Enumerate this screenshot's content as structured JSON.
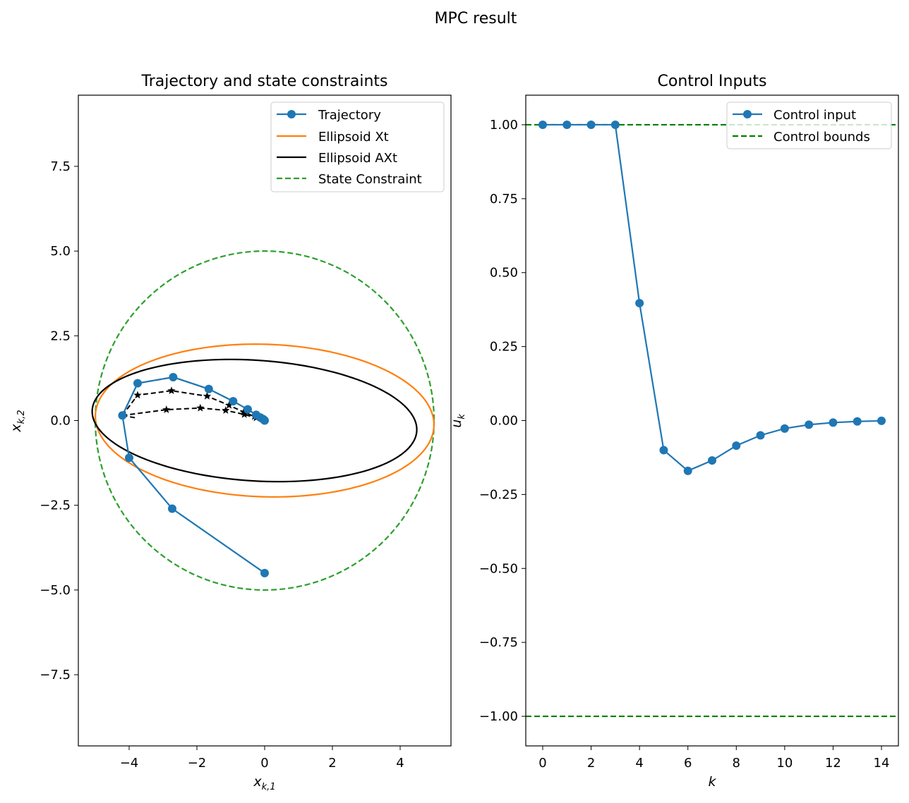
{
  "figure": {
    "suptitle": "MPC result"
  },
  "chart_data": [
    {
      "type": "line",
      "title": "Trajectory and state constraints",
      "xlabel": "x",
      "xlabel_sub": "k,1",
      "ylabel": "x",
      "ylabel_sub": "k,2",
      "xlim": [
        -5.5,
        5.5
      ],
      "ylim": [
        -9.6,
        9.6
      ],
      "xticks": [
        -4,
        -2,
        0,
        2,
        4
      ],
      "xtick_labels": [
        "−4",
        "−2",
        "0",
        "2",
        "4"
      ],
      "yticks": [
        -7.5,
        -5.0,
        -2.5,
        0.0,
        2.5,
        5.0,
        7.5
      ],
      "ytick_labels": [
        "−7.5",
        "−5.0",
        "−2.5",
        "0.0",
        "2.5",
        "5.0",
        "7.5"
      ],
      "legend_position": "top-right",
      "series": [
        {
          "name": "Trajectory",
          "color": "#1f77b4",
          "style": "solid-marker",
          "x": [
            0.0,
            -2.73,
            -4.0,
            -4.2,
            -3.75,
            -2.7,
            -1.65,
            -0.93,
            -0.5,
            -0.25,
            -0.13,
            -0.06,
            -0.03,
            -0.01,
            0.0
          ],
          "y": [
            -4.5,
            -2.6,
            -1.1,
            0.15,
            1.1,
            1.28,
            0.93,
            0.57,
            0.33,
            0.17,
            0.09,
            0.05,
            0.03,
            0.01,
            0.0
          ]
        },
        {
          "name": "Ellipsoid Xt",
          "color": "#ff7f0e",
          "style": "ellipse",
          "center": [
            0.0,
            0.0
          ],
          "semi_axes": [
            5.0,
            2.25
          ],
          "rotation_deg": -1.8
        },
        {
          "name": "Ellipsoid AXt",
          "color": "#000000",
          "style": "ellipse",
          "center": [
            -0.3,
            0.0
          ],
          "semi_axes": [
            4.8,
            1.78
          ],
          "rotation_deg": -3.7
        },
        {
          "name": "State Constraint",
          "color": "#2ca02c",
          "style": "dashed-circle",
          "center": [
            0.0,
            0.0
          ],
          "radius": 5.0
        }
      ],
      "predictions": {
        "color": "#000000",
        "style": "dashed-star",
        "paths": [
          {
            "x": [
              -4.2,
              -3.75,
              -2.7,
              -1.65,
              -0.93,
              -0.5,
              -0.25,
              0.0
            ],
            "y": [
              0.15,
              1.1,
              1.28,
              0.93,
              0.57,
              0.33,
              0.17,
              0.0
            ]
          },
          {
            "x": [
              -4.2,
              -3.75,
              -2.75,
              -1.7,
              -1.05,
              -0.62,
              -0.3,
              0.0
            ],
            "y": [
              0.15,
              0.75,
              0.88,
              0.72,
              0.45,
              0.25,
              0.12,
              0.0
            ]
          },
          {
            "x": [
              -4.2,
              -2.9,
              -1.9,
              -1.15,
              -0.6,
              -0.25,
              0.0
            ],
            "y": [
              0.15,
              0.32,
              0.37,
              0.3,
              0.18,
              0.08,
              0.0
            ]
          },
          {
            "x": [
              -4.2,
              -3.75
            ],
            "y": [
              0.15,
              0.07
            ]
          }
        ]
      }
    },
    {
      "type": "line",
      "title": "Control Inputs",
      "xlabel": "k",
      "ylabel": "u",
      "ylabel_sub": "k",
      "xlim": [
        -0.7,
        14.7
      ],
      "ylim": [
        -1.1,
        1.1
      ],
      "xticks": [
        0,
        2,
        4,
        6,
        8,
        10,
        12,
        14
      ],
      "xtick_labels": [
        "0",
        "2",
        "4",
        "6",
        "8",
        "10",
        "12",
        "14"
      ],
      "yticks": [
        -1.0,
        -0.75,
        -0.5,
        -0.25,
        0.0,
        0.25,
        0.5,
        0.75,
        1.0
      ],
      "ytick_labels": [
        "−1.00",
        "−0.75",
        "−0.50",
        "−0.25",
        "0.00",
        "0.25",
        "0.50",
        "0.75",
        "1.00"
      ],
      "legend_position": "top-right",
      "series": [
        {
          "name": "Control input",
          "color": "#1f77b4",
          "style": "solid-marker",
          "x": [
            0,
            1,
            2,
            3,
            4,
            5,
            6,
            7,
            8,
            9,
            10,
            11,
            12,
            13,
            14
          ],
          "y": [
            1.0,
            1.0,
            1.0,
            1.0,
            0.397,
            -0.1,
            -0.17,
            -0.135,
            -0.085,
            -0.05,
            -0.027,
            -0.014,
            -0.007,
            -0.003,
            -0.001
          ]
        },
        {
          "name": "Control bounds",
          "color": "#008000",
          "style": "dashed-hline",
          "values": [
            1.0,
            -1.0
          ]
        }
      ]
    }
  ]
}
